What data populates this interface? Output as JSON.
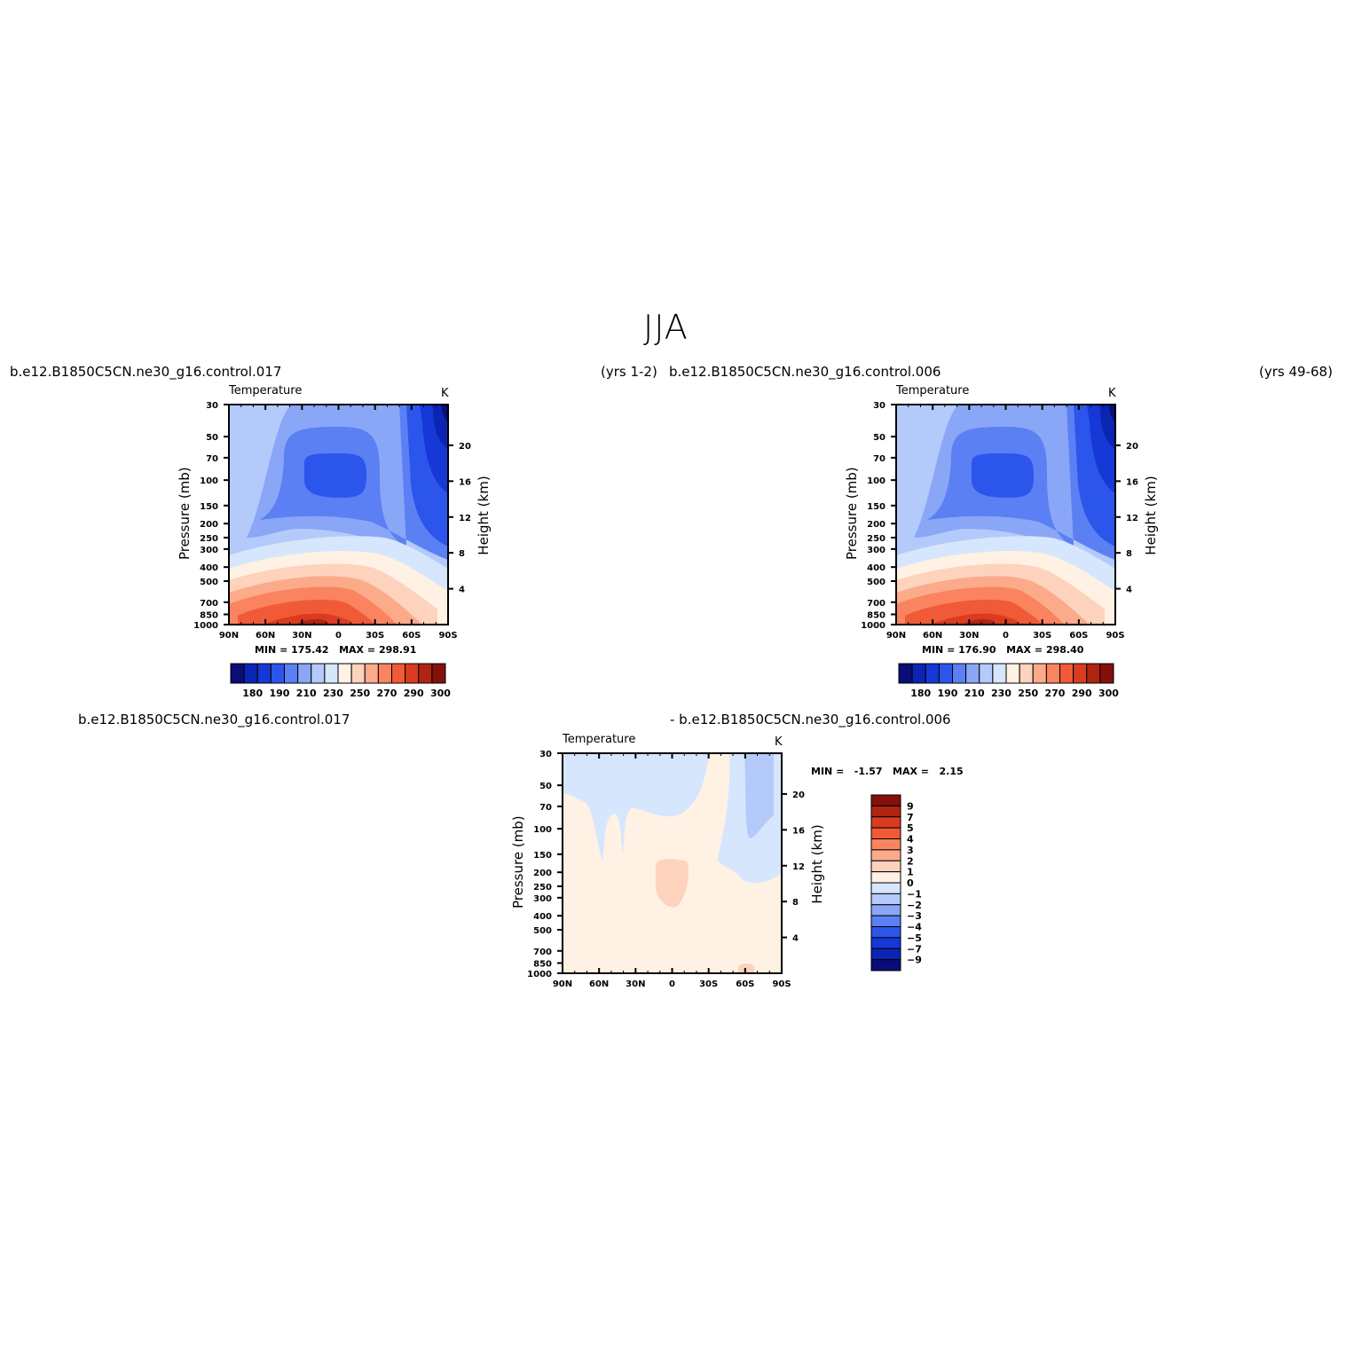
{
  "figure": {
    "title": "JJA"
  },
  "panels": {
    "top_left": {
      "case": "b.e12.B1850C5CN.ne30_g16.control.017",
      "years": "(yrs 1-2)",
      "variable": "Temperature",
      "units": "K",
      "min_label": "MIN =",
      "min": "175.42",
      "max_label": "MAX =",
      "max": "298.91"
    },
    "top_right": {
      "case": "b.e12.B1850C5CN.ne30_g16.control.006",
      "years": "(yrs 49-68)",
      "variable": "Temperature",
      "units": "K",
      "min_label": "MIN =",
      "min": "176.90",
      "max_label": "MAX =",
      "max": "298.40"
    },
    "bottom": {
      "case_a": "b.e12.B1850C5CN.ne30_g16.control.017",
      "case_b": "- b.e12.B1850C5CN.ne30_g16.control.006",
      "variable": "Temperature",
      "units": "K",
      "min_label": "MIN =",
      "min": "-1.57",
      "max_label": "MAX =",
      "max": "2.15"
    }
  },
  "axes": {
    "ylabel": "Pressure (mb)",
    "ylabel_right": "Height (km)"
  },
  "colors": {
    "abs_scale": [
      "#0a0c78",
      "#0c24b4",
      "#1538d6",
      "#2c55ec",
      "#5b80f4",
      "#8aa6f7",
      "#b4cafa",
      "#d6e6fd",
      "#fff1e4",
      "#fdd3bd",
      "#fcab8a",
      "#f9845f",
      "#f05a37",
      "#d93c20",
      "#b02412",
      "#85100b"
    ],
    "diff_scale": [
      "#85100b",
      "#b02412",
      "#d93c20",
      "#f05a37",
      "#f9845f",
      "#fcab8a",
      "#fdd3bd",
      "#fff1e4",
      "#d6e6fd",
      "#b4cafa",
      "#8aa6f7",
      "#5b80f4",
      "#2c55ec",
      "#1538d6",
      "#0c24b4",
      "#0a0c78"
    ]
  },
  "chart_data": [
    {
      "type": "heatmap",
      "title": "b.e12.B1850C5CN.ne30_g16.control.017",
      "subtitle": "Temperature",
      "units": "K",
      "x_ticks": [
        "90N",
        "60N",
        "30N",
        "0",
        "30S",
        "60S",
        "90S"
      ],
      "y_ticks": [
        30,
        50,
        70,
        100,
        150,
        200,
        250,
        300,
        400,
        500,
        700,
        850,
        1000
      ],
      "y_scale": "log",
      "ylim": [
        1000,
        30
      ],
      "y_right_ticks": [
        4,
        8,
        12,
        16,
        20
      ],
      "min": 175.42,
      "max": 298.91,
      "colorbar_ticks": [
        180,
        190,
        210,
        230,
        250,
        270,
        290,
        300
      ]
    },
    {
      "type": "heatmap",
      "title": "b.e12.B1850C5CN.ne30_g16.control.006",
      "subtitle": "Temperature",
      "units": "K",
      "x_ticks": [
        "90N",
        "60N",
        "30N",
        "0",
        "30S",
        "60S",
        "90S"
      ],
      "y_ticks": [
        30,
        50,
        70,
        100,
        150,
        200,
        250,
        300,
        400,
        500,
        700,
        850,
        1000
      ],
      "y_scale": "log",
      "ylim": [
        1000,
        30
      ],
      "y_right_ticks": [
        4,
        8,
        12,
        16,
        20
      ],
      "min": 176.9,
      "max": 298.4,
      "colorbar_ticks": [
        180,
        190,
        210,
        230,
        250,
        270,
        290,
        300
      ]
    },
    {
      "type": "heatmap",
      "title": "b.e12.B1850C5CN.ne30_g16.control.017 - b.e12.B1850C5CN.ne30_g16.control.006",
      "subtitle": "Temperature",
      "units": "K",
      "x_ticks": [
        "90N",
        "60N",
        "30N",
        "0",
        "30S",
        "60S",
        "90S"
      ],
      "y_ticks": [
        30,
        50,
        70,
        100,
        150,
        200,
        250,
        300,
        400,
        500,
        700,
        850,
        1000
      ],
      "y_scale": "log",
      "ylim": [
        1000,
        30
      ],
      "y_right_ticks": [
        4,
        8,
        12,
        16,
        20
      ],
      "min": -1.57,
      "max": 2.15,
      "colorbar_ticks": [
        9,
        7,
        5,
        4,
        3,
        2,
        1,
        0,
        -1,
        -2,
        -3,
        -4,
        -5,
        -7,
        -9
      ]
    }
  ]
}
